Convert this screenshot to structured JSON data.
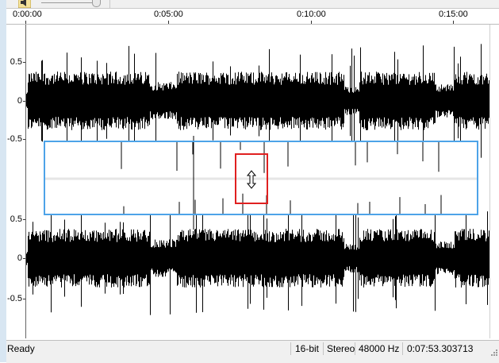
{
  "ruler": {
    "labels": [
      "0:00:00",
      "0:05:00",
      "0:10:00",
      "0:15:00"
    ]
  },
  "channels": {
    "top": {
      "labels": [
        "0.5",
        "0",
        "-0.5"
      ]
    },
    "bottom": {
      "labels": [
        "0.5",
        "0",
        "-0.5"
      ]
    }
  },
  "cursor": {
    "icon": "resize-vertical-cursor-icon"
  },
  "colors": {
    "waveform": "#000000",
    "selection_border": "#4da3e8",
    "highlight_box": "#e02020",
    "center_line": "#e6e6e6"
  },
  "status": {
    "state": "Ready",
    "bit_depth": "16-bit",
    "channels": "Stereo",
    "sample_rate": "48000 Hz",
    "duration": "0:07:53.303713"
  }
}
